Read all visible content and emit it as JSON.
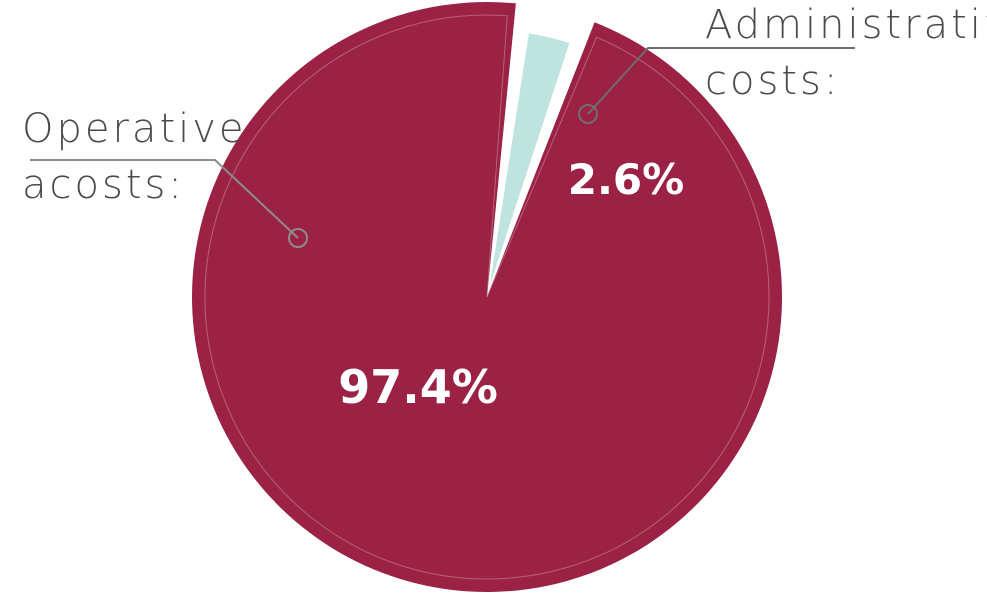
{
  "chart_data": {
    "type": "pie",
    "slices": [
      {
        "label_lines": [
          "Operative",
          "acosts:"
        ],
        "value": 97.4,
        "value_label": "97.4%",
        "color": "#9b2245"
      },
      {
        "label_lines": [
          "Administrative",
          "costs:"
        ],
        "value": 2.6,
        "value_label": "2.6%",
        "color": "#bfe3df"
      }
    ],
    "exploded_slice": "Administrative",
    "title": "",
    "legend": "none"
  }
}
